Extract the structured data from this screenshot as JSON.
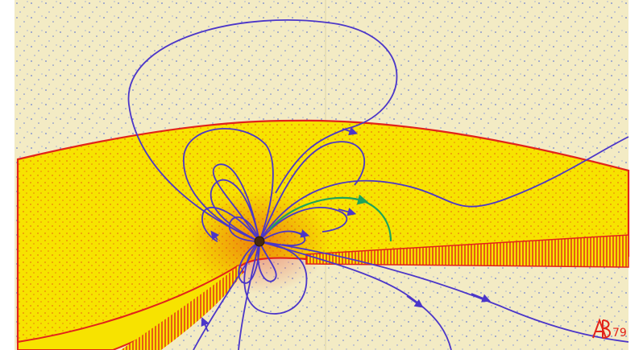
{
  "signature": {
    "text": "AB 79"
  },
  "colors": {
    "background": "#ffffff",
    "paper": "#f3ebc4",
    "paper_dots": "#6b7fd1",
    "yellow_region": "#f7e300",
    "red_boundary": "#e2231a",
    "field_lines": "#4b36c9",
    "green_arrow": "#1fa35a",
    "center_dot": "#4a2b10"
  }
}
